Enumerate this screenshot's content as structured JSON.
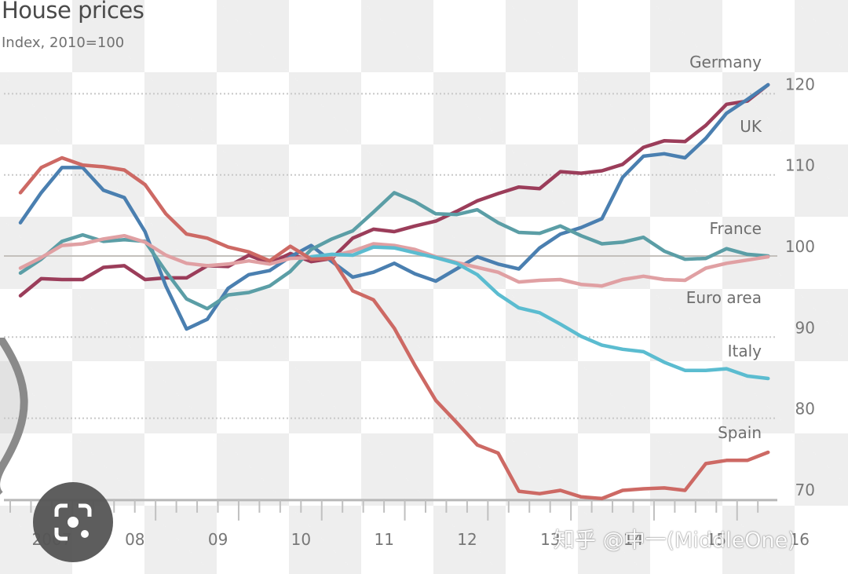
{
  "chart_data": {
    "type": "line",
    "title": "House prices",
    "subtitle": "Index, 2010=100",
    "xlabel": "",
    "ylabel": "",
    "x_unit": "quarter",
    "x_start": "2007Q1",
    "x_end": "2016Q1",
    "xticks": [
      "2007",
      "08",
      "09",
      "10",
      "11",
      "12",
      "13",
      "14",
      "15",
      "16"
    ],
    "yticks": [
      70,
      80,
      90,
      100,
      110,
      120
    ],
    "ylim": [
      70,
      122
    ],
    "grid": "horizontal dotted",
    "reference_line": 100,
    "axis_side": "right",
    "series": [
      {
        "name": "Germany",
        "color": "#9b3d5a",
        "label": "Germany",
        "values": [
          95.1,
          97.2,
          97.1,
          97.1,
          98.6,
          98.8,
          97.1,
          97.3,
          97.3,
          98.8,
          98.7,
          100.1,
          99.1,
          100.3,
          99.3,
          99.7,
          102.2,
          103.3,
          103.0,
          103.7,
          104.3,
          105.5,
          106.8,
          107.7,
          108.5,
          108.3,
          110.4,
          110.2,
          110.5,
          111.3,
          113.4,
          114.2,
          114.1,
          116.1,
          118.7,
          119.1,
          121.1
        ]
      },
      {
        "name": "UK",
        "color": "#4a7fb0",
        "label": "UK",
        "values": [
          104.1,
          107.8,
          110.9,
          110.9,
          108.1,
          107.2,
          103.0,
          96.3,
          91.0,
          92.2,
          96.0,
          97.7,
          98.2,
          99.9,
          101.3,
          99.3,
          97.4,
          98.0,
          99.1,
          97.8,
          96.9,
          98.4,
          99.9,
          99.0,
          98.4,
          101.0,
          102.7,
          103.5,
          104.6,
          109.7,
          112.3,
          112.6,
          112.1,
          114.5,
          117.6,
          119.3,
          121.1
        ]
      },
      {
        "name": "France",
        "color": "#5b9ea6",
        "label": "France",
        "values": [
          97.9,
          99.6,
          101.8,
          102.6,
          101.8,
          102.0,
          101.8,
          98.1,
          94.7,
          93.5,
          95.2,
          95.5,
          96.3,
          98.1,
          100.8,
          102.1,
          103.1,
          105.4,
          107.8,
          106.7,
          105.2,
          105.1,
          105.7,
          104.1,
          102.9,
          102.8,
          103.7,
          102.5,
          101.5,
          101.7,
          102.3,
          100.6,
          99.6,
          99.7,
          100.9,
          100.2,
          100.0
        ]
      },
      {
        "name": "Euro area",
        "color": "#e0a0a3",
        "label": "Euro area",
        "values": [
          98.5,
          99.8,
          101.3,
          101.5,
          102.1,
          102.5,
          101.7,
          100.1,
          99.1,
          98.8,
          99.0,
          99.4,
          99.0,
          99.7,
          99.8,
          100.0,
          100.6,
          101.5,
          101.3,
          100.8,
          99.9,
          99.2,
          98.6,
          98.0,
          96.8,
          97.0,
          97.1,
          96.5,
          96.3,
          97.1,
          97.5,
          97.1,
          97.0,
          98.5,
          99.1,
          99.5,
          99.9
        ]
      },
      {
        "name": "Italy",
        "color": "#5bbcd0",
        "label": "Italy",
        "values": [
          null,
          null,
          null,
          null,
          null,
          null,
          null,
          null,
          null,
          null,
          null,
          null,
          null,
          null,
          99.9,
          100.2,
          100.1,
          101.1,
          101.0,
          100.4,
          99.8,
          99.1,
          97.7,
          95.3,
          93.6,
          93.0,
          91.6,
          90.1,
          89.0,
          88.5,
          88.2,
          86.9,
          85.9,
          85.9,
          86.1,
          85.2,
          84.9
        ]
      },
      {
        "name": "Spain",
        "color": "#cd6964",
        "label": "Spain",
        "values": [
          107.8,
          110.9,
          112.1,
          111.2,
          111.0,
          110.6,
          108.8,
          105.2,
          102.7,
          102.2,
          101.1,
          100.5,
          99.4,
          101.2,
          99.6,
          99.7,
          95.7,
          94.6,
          91.1,
          86.5,
          82.2,
          79.5,
          76.7,
          75.7,
          71.0,
          70.7,
          71.1,
          70.3,
          70.1,
          71.1,
          71.3,
          71.4,
          71.1,
          74.4,
          74.8,
          74.8,
          75.8
        ]
      }
    ]
  },
  "overlays": {
    "watermark": "知乎 @中一(MiddleOne)",
    "lens_button": "google-lens-icon"
  }
}
